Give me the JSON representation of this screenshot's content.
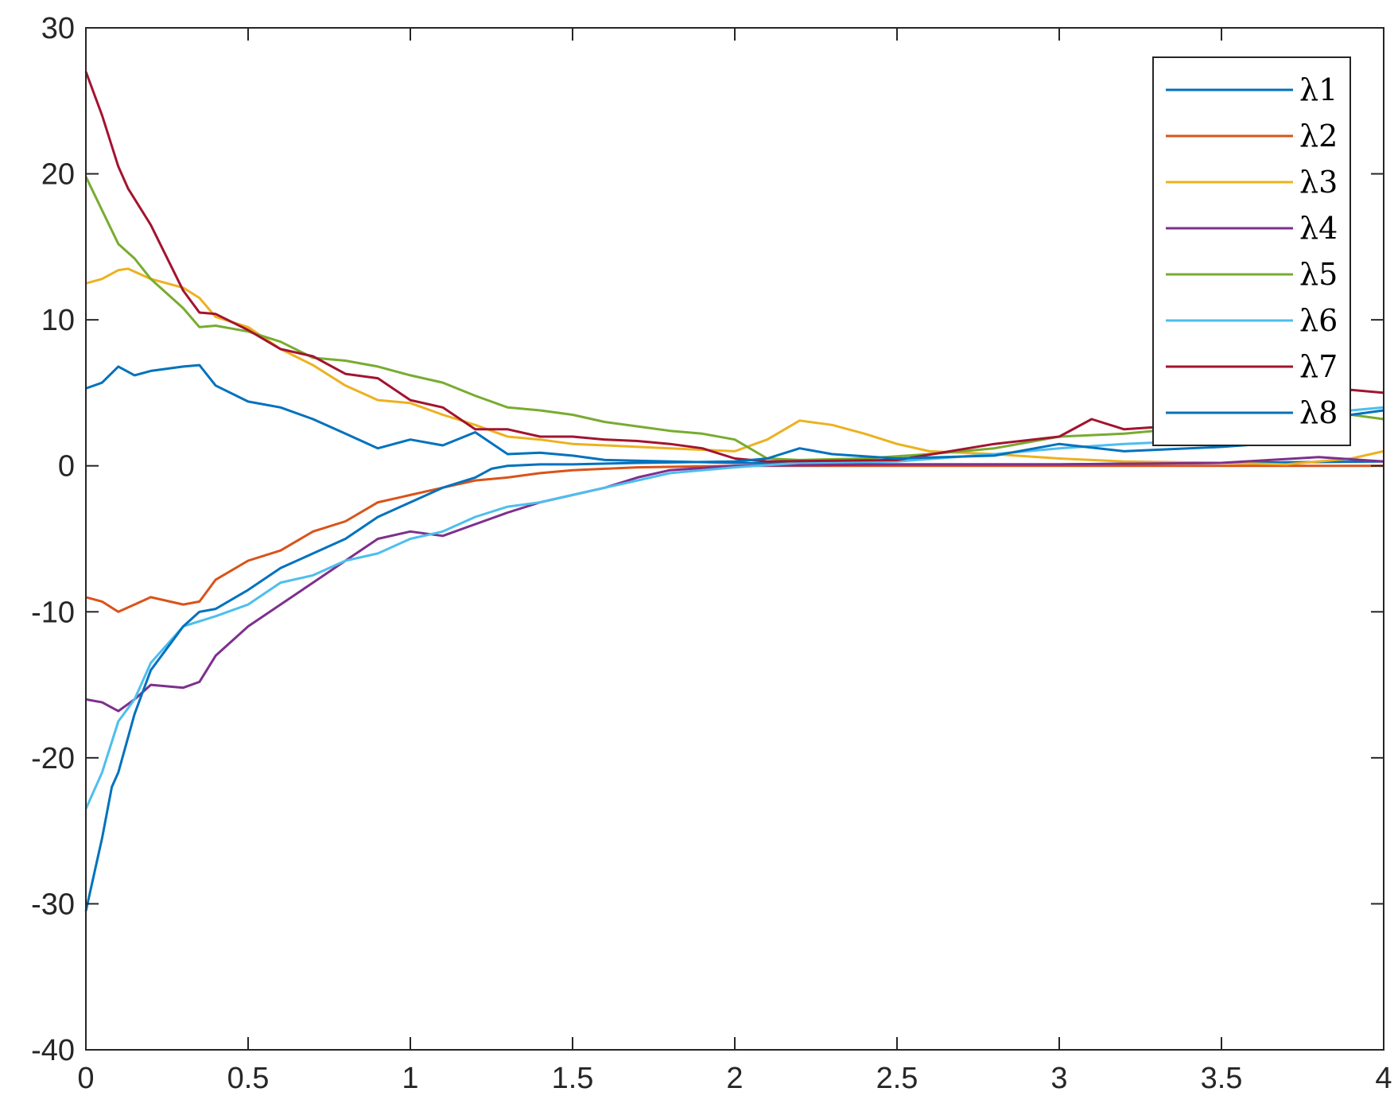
{
  "chart_data": {
    "type": "line",
    "title": "",
    "xlabel": "",
    "ylabel": "",
    "xlim": [
      0,
      4
    ],
    "ylim": [
      -40,
      30
    ],
    "xticks": [
      0,
      0.5,
      1,
      1.5,
      2,
      2.5,
      3,
      3.5,
      4
    ],
    "xtick_labels": [
      "0",
      "0.5",
      "1",
      "1.5",
      "2",
      "2.5",
      "3",
      "3.5",
      "4"
    ],
    "yticks": [
      -40,
      -30,
      -20,
      -10,
      0,
      10,
      20,
      30
    ],
    "ytick_labels": [
      "-40",
      "-30",
      "-20",
      "-10",
      "0",
      "10",
      "20",
      "30"
    ],
    "grid": false,
    "legend_position": "top-right",
    "series": [
      {
        "name": "λ1",
        "color": "#0072BD",
        "x": [
          0,
          0.05,
          0.1,
          0.15,
          0.2,
          0.3,
          0.35,
          0.4,
          0.5,
          0.6,
          0.7,
          0.8,
          0.9,
          1.0,
          1.1,
          1.2,
          1.3,
          1.4,
          1.5,
          1.6,
          1.8,
          2.0,
          2.2,
          2.5,
          3.0,
          3.5,
          4.0
        ],
        "y": [
          5.3,
          5.7,
          6.8,
          6.2,
          6.5,
          6.8,
          6.9,
          5.5,
          4.4,
          4.0,
          3.2,
          2.2,
          1.2,
          1.8,
          1.4,
          2.3,
          0.8,
          0.9,
          0.7,
          0.4,
          0.3,
          0.2,
          0.15,
          0.1,
          0.1,
          0.2,
          0.3
        ]
      },
      {
        "name": "λ2",
        "color": "#D95319",
        "x": [
          0,
          0.05,
          0.1,
          0.15,
          0.2,
          0.3,
          0.35,
          0.4,
          0.5,
          0.6,
          0.7,
          0.8,
          0.9,
          1.0,
          1.1,
          1.2,
          1.3,
          1.4,
          1.5,
          1.7,
          2.0,
          2.5,
          3.0,
          3.5,
          4.0
        ],
        "y": [
          -9.0,
          -9.3,
          -10.0,
          -9.5,
          -9.0,
          -9.5,
          -9.3,
          -7.8,
          -6.5,
          -5.8,
          -4.5,
          -3.8,
          -2.5,
          -2.0,
          -1.5,
          -1.0,
          -0.8,
          -0.5,
          -0.3,
          -0.1,
          0.0,
          0.0,
          0.0,
          0.0,
          0.0
        ]
      },
      {
        "name": "λ3",
        "color": "#EDB120",
        "x": [
          0,
          0.05,
          0.1,
          0.13,
          0.2,
          0.3,
          0.35,
          0.4,
          0.5,
          0.6,
          0.7,
          0.8,
          0.9,
          1.0,
          1.1,
          1.2,
          1.3,
          1.4,
          1.5,
          1.6,
          1.8,
          2.0,
          2.1,
          2.2,
          2.3,
          2.4,
          2.5,
          2.6,
          2.8,
          3.0,
          3.2,
          3.5,
          3.7,
          3.9,
          4.0
        ],
        "y": [
          12.5,
          12.8,
          13.4,
          13.5,
          12.8,
          12.2,
          11.5,
          10.2,
          9.5,
          8.0,
          6.9,
          5.5,
          4.5,
          4.3,
          3.5,
          2.8,
          2.0,
          1.8,
          1.5,
          1.4,
          1.2,
          1.0,
          1.8,
          3.1,
          2.8,
          2.2,
          1.5,
          1.0,
          0.8,
          0.5,
          0.3,
          0.2,
          0.1,
          0.5,
          1.0
        ]
      },
      {
        "name": "λ4",
        "color": "#7E2F8E",
        "x": [
          0,
          0.05,
          0.1,
          0.15,
          0.2,
          0.3,
          0.35,
          0.4,
          0.5,
          0.6,
          0.7,
          0.8,
          0.9,
          1.0,
          1.1,
          1.2,
          1.3,
          1.4,
          1.5,
          1.6,
          1.7,
          1.8,
          2.0,
          2.5,
          3.0,
          3.5,
          3.8,
          4.0
        ],
        "y": [
          -16.0,
          -16.2,
          -16.8,
          -16.0,
          -15.0,
          -15.2,
          -14.8,
          -13.0,
          -11.0,
          -9.5,
          -8.0,
          -6.5,
          -5.0,
          -4.5,
          -4.8,
          -4.0,
          -3.2,
          -2.5,
          -2.0,
          -1.5,
          -0.8,
          -0.3,
          0.0,
          0.1,
          0.1,
          0.2,
          0.6,
          0.3
        ]
      },
      {
        "name": "λ5",
        "color": "#77AC30",
        "x": [
          0,
          0.05,
          0.1,
          0.15,
          0.2,
          0.3,
          0.35,
          0.4,
          0.5,
          0.6,
          0.7,
          0.8,
          0.9,
          1.0,
          1.1,
          1.2,
          1.3,
          1.4,
          1.5,
          1.6,
          1.7,
          1.8,
          1.9,
          2.0,
          2.1,
          2.2,
          2.4,
          2.6,
          2.8,
          3.0,
          3.2,
          3.5,
          3.7,
          3.9,
          4.0
        ],
        "y": [
          19.8,
          17.5,
          15.2,
          14.2,
          12.8,
          10.8,
          9.5,
          9.6,
          9.2,
          8.5,
          7.4,
          7.2,
          6.8,
          6.2,
          5.7,
          4.8,
          4.0,
          3.8,
          3.5,
          3.0,
          2.7,
          2.4,
          2.2,
          1.8,
          0.5,
          0.4,
          0.5,
          0.8,
          1.2,
          2.0,
          2.2,
          2.8,
          2.5,
          3.5,
          3.2
        ]
      },
      {
        "name": "λ6",
        "color": "#4DBEEE",
        "x": [
          0,
          0.05,
          0.1,
          0.15,
          0.2,
          0.3,
          0.4,
          0.5,
          0.6,
          0.7,
          0.8,
          0.9,
          1.0,
          1.1,
          1.2,
          1.3,
          1.4,
          1.5,
          1.6,
          1.7,
          1.8,
          2.0,
          2.2,
          2.5,
          2.8,
          3.0,
          3.2,
          3.5,
          3.7,
          3.9,
          4.0
        ],
        "y": [
          -23.5,
          -21.0,
          -17.5,
          -16.0,
          -13.5,
          -11.0,
          -10.3,
          -9.5,
          -8.0,
          -7.5,
          -6.5,
          -6.0,
          -5.0,
          -4.5,
          -3.5,
          -2.8,
          -2.5,
          -2.0,
          -1.5,
          -1.0,
          -0.5,
          -0.1,
          0.2,
          0.3,
          0.8,
          1.2,
          1.5,
          1.8,
          2.2,
          3.8,
          4.0
        ]
      },
      {
        "name": "λ7",
        "color": "#A2142F",
        "x": [
          0,
          0.05,
          0.1,
          0.13,
          0.2,
          0.3,
          0.35,
          0.4,
          0.5,
          0.6,
          0.7,
          0.8,
          0.9,
          1.0,
          1.1,
          1.2,
          1.3,
          1.4,
          1.5,
          1.6,
          1.7,
          1.8,
          1.9,
          2.0,
          2.1,
          2.5,
          2.8,
          3.0,
          3.1,
          3.2,
          3.4,
          3.6,
          3.8,
          3.9,
          4.0
        ],
        "y": [
          27.0,
          24.0,
          20.5,
          19.0,
          16.5,
          12.0,
          10.5,
          10.4,
          9.3,
          8.0,
          7.5,
          6.3,
          6.0,
          4.5,
          4.0,
          2.5,
          2.5,
          2.0,
          2.0,
          1.8,
          1.7,
          1.5,
          1.2,
          0.5,
          0.3,
          0.4,
          1.5,
          2.0,
          3.2,
          2.5,
          2.8,
          3.2,
          4.0,
          5.2,
          5.0
        ]
      },
      {
        "name": "λ8",
        "color": "#0072BD",
        "x": [
          0,
          0.03,
          0.05,
          0.08,
          0.1,
          0.15,
          0.2,
          0.3,
          0.35,
          0.4,
          0.5,
          0.6,
          0.7,
          0.8,
          0.9,
          1.0,
          1.1,
          1.2,
          1.25,
          1.3,
          1.4,
          1.5,
          1.7,
          2.0,
          2.1,
          2.2,
          2.3,
          2.5,
          2.8,
          3.0,
          3.2,
          3.5,
          3.7,
          3.9,
          4.0
        ],
        "y": [
          -30.5,
          -27.5,
          -25.5,
          -22.0,
          -21.0,
          -17.0,
          -14.0,
          -11.0,
          -10.0,
          -9.8,
          -8.5,
          -7.0,
          -6.0,
          -5.0,
          -3.5,
          -2.5,
          -1.5,
          -0.8,
          -0.2,
          0.0,
          0.1,
          0.1,
          0.2,
          0.3,
          0.5,
          1.2,
          0.8,
          0.5,
          0.7,
          1.5,
          1.0,
          1.3,
          1.6,
          3.5,
          3.8
        ]
      }
    ]
  }
}
